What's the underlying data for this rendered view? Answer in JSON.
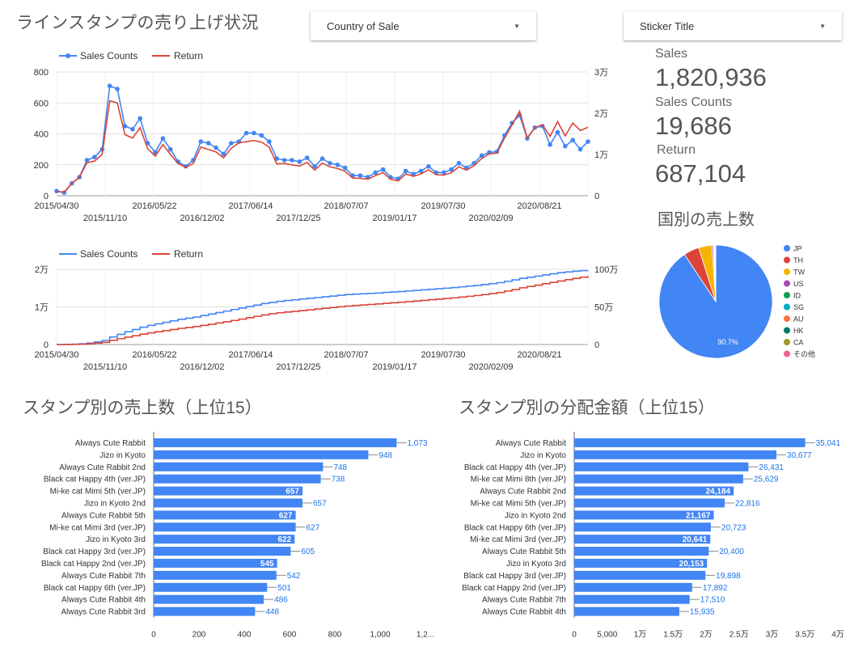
{
  "header": {
    "title": "ラインスタンプの売り上げ状況"
  },
  "filters": {
    "country": {
      "label": "Country of Sale"
    },
    "sticker": {
      "label": "Sticker Title"
    }
  },
  "kpis": {
    "sales": {
      "label": "Sales",
      "value": "1,820,936"
    },
    "sales_counts": {
      "label": "Sales Counts",
      "value": "19,686"
    },
    "return": {
      "label": "Return",
      "value": "687,104"
    }
  },
  "pie_title": "国別の売上数",
  "bar1_title": "スタンプ別の売上数（上位15）",
  "bar2_title": "スタンプ別の分配金額（上位15）",
  "colors": {
    "blue": "#4285f4",
    "red": "#db4437",
    "yellow": "#f4b400",
    "axis": "#757575",
    "grid": "#e0e0e0"
  },
  "chart_data": [
    {
      "type": "line",
      "id": "timeseries",
      "legend": [
        "Sales Counts",
        "Return"
      ],
      "x_ticks_top": [
        "2015/04/30",
        "2016/05/22",
        "2017/06/14",
        "2018/07/07",
        "2019/07/30",
        "2020/08/21"
      ],
      "x_ticks_bottom": [
        "2015/11/10",
        "2016/12/02",
        "2017/12/25",
        "2019/01/17",
        "2020/02/09"
      ],
      "y_left_ticks": [
        "800",
        "600",
        "400",
        "200",
        "0"
      ],
      "y_right_ticks": [
        "3万",
        "2万",
        "1万",
        "0"
      ],
      "y_left_range": [
        0,
        800
      ],
      "y_right_range": [
        0,
        30000
      ],
      "series": [
        {
          "name": "Sales Counts",
          "axis": "left",
          "values": [
            30,
            20,
            80,
            120,
            230,
            250,
            300,
            710,
            690,
            450,
            430,
            500,
            340,
            280,
            370,
            300,
            220,
            190,
            230,
            350,
            340,
            310,
            270,
            340,
            350,
            405,
            405,
            390,
            350,
            240,
            230,
            230,
            220,
            245,
            190,
            240,
            210,
            200,
            180,
            130,
            130,
            120,
            150,
            170,
            120,
            110,
            160,
            140,
            160,
            190,
            150,
            150,
            170,
            210,
            180,
            210,
            260,
            280,
            285,
            390,
            470,
            520,
            370,
            440,
            450,
            330,
            410,
            320,
            360,
            300,
            350
          ]
        },
        {
          "name": "Return",
          "axis": "right",
          "values": [
            1000,
            900,
            3000,
            4500,
            8000,
            8400,
            10000,
            23000,
            22500,
            14800,
            14000,
            16500,
            11400,
            9600,
            12400,
            10000,
            7800,
            6900,
            7800,
            11800,
            11200,
            10600,
            9200,
            11500,
            12800,
            13100,
            13400,
            13000,
            11800,
            7700,
            7800,
            7500,
            7200,
            8100,
            6200,
            7900,
            7000,
            6600,
            5900,
            4300,
            4200,
            4000,
            4900,
            5600,
            4000,
            3600,
            5300,
            4700,
            5300,
            6300,
            5100,
            5000,
            5600,
            7000,
            6200,
            7300,
            9000,
            10200,
            10300,
            14000,
            17200,
            20500,
            14000,
            16500,
            17200,
            14400,
            18000,
            14500,
            17600,
            15800,
            16600
          ]
        }
      ]
    },
    {
      "type": "line",
      "id": "cumulative",
      "legend": [
        "Sales Counts",
        "Return"
      ],
      "x_ticks_top": [
        "2015/04/30",
        "2016/05/22",
        "2017/06/14",
        "2018/07/07",
        "2019/07/30",
        "2020/08/21"
      ],
      "x_ticks_bottom": [
        "2015/11/10",
        "2016/12/02",
        "2017/12/25",
        "2019/01/17",
        "2020/02/09"
      ],
      "y_left_ticks": [
        "2万",
        "1万",
        "0"
      ],
      "y_right_ticks": [
        "100万",
        "50万",
        "0"
      ],
      "y_left_range": [
        0,
        20000
      ],
      "y_right_range": [
        0,
        1000000
      ],
      "series": [
        {
          "name": "Sales Counts",
          "axis": "left",
          "values": [
            0,
            50,
            100,
            200,
            400,
            700,
            1100,
            2000,
            2700,
            3400,
            4000,
            4600,
            5100,
            5500,
            5900,
            6300,
            6700,
            7000,
            7300,
            7700,
            8100,
            8500,
            8900,
            9300,
            9700,
            10100,
            10500,
            10900,
            11200,
            11500,
            11700,
            11900,
            12100,
            12300,
            12500,
            12700,
            12900,
            13100,
            13300,
            13400,
            13500,
            13600,
            13700,
            13850,
            14000,
            14100,
            14250,
            14400,
            14550,
            14700,
            14850,
            15000,
            15150,
            15350,
            15550,
            15750,
            15950,
            16200,
            16450,
            16800,
            17200,
            17600,
            17900,
            18200,
            18500,
            18800,
            19100,
            19300,
            19500,
            19650,
            19700
          ]
        },
        {
          "name": "Return",
          "axis": "right",
          "values": [
            0,
            1000,
            2500,
            5500,
            11000,
            19000,
            29000,
            56000,
            78000,
            99000,
            118000,
            138000,
            155000,
            170000,
            185000,
            200000,
            215000,
            227000,
            240000,
            255000,
            270000,
            287000,
            303000,
            320000,
            338000,
            357000,
            375000,
            393000,
            410000,
            422000,
            432000,
            442000,
            452000,
            462000,
            472000,
            482000,
            492000,
            502000,
            512000,
            519000,
            526000,
            533000,
            540000,
            548000,
            556000,
            563000,
            571000,
            579000,
            587000,
            596000,
            604000,
            612000,
            621000,
            631000,
            641000,
            652000,
            664000,
            678000,
            692000,
            710000,
            731000,
            754000,
            772000,
            790000,
            808000,
            826000,
            845000,
            862000,
            880000,
            896000,
            912000
          ]
        }
      ]
    },
    {
      "type": "pie",
      "id": "country-pie",
      "title": "国別の売上数",
      "labels": [
        "JP",
        "TH",
        "TW",
        "US",
        "ID",
        "SG",
        "AU",
        "HK",
        "CA",
        "その他"
      ],
      "values": [
        90.7,
        4.4,
        3.8,
        0.4,
        0.2,
        0.2,
        0.1,
        0.1,
        0.05,
        0.05
      ],
      "slice_label": "90.7%",
      "colors": [
        "#4285f4",
        "#db4437",
        "#f4b400",
        "#ab47bc",
        "#0f9d58",
        "#00acc1",
        "#ff7043",
        "#00796b",
        "#9e9d24",
        "#f06292"
      ]
    },
    {
      "type": "bar",
      "id": "top15-counts",
      "title": "スタンプ別の売上数（上位15）",
      "orientation": "horizontal",
      "categories": [
        "Always Cute Rabbit",
        "Jizo in Kyoto",
        "Always Cute Rabbit 2nd",
        "Black cat Happy 4th (ver.JP)",
        "Mi-ke cat Mimi 5th (ver.JP)",
        "Jizo in Kyoto 2nd",
        "Always Cute Rabbit 5th",
        "Mi-ke cat Mimi 3rd (ver.JP)",
        "Jizo in Kyoto 3rd",
        "Black cat Happy 3rd (ver.JP)",
        "Black cat Happy 2nd (ver.JP)",
        "Always Cute Rabbit 7th",
        "Black cat Happy 6th (ver.JP)",
        "Always Cute Rabbit 4th",
        "Always Cute Rabbit 3rd"
      ],
      "values": [
        1073,
        948,
        748,
        738,
        657,
        657,
        627,
        627,
        622,
        605,
        545,
        542,
        501,
        486,
        448
      ],
      "value_labels": [
        "1,073",
        "948",
        "748",
        "738",
        "657",
        "657",
        "627",
        "627",
        "622",
        "605",
        "545",
        "542",
        "501",
        "486",
        "448"
      ],
      "inside_label": [
        false,
        false,
        false,
        false,
        true,
        false,
        true,
        false,
        true,
        false,
        true,
        false,
        false,
        false,
        false
      ],
      "x_ticks": [
        "0",
        "200",
        "400",
        "600",
        "800",
        "1,000",
        "1,2..."
      ],
      "xlim": [
        0,
        1250
      ]
    },
    {
      "type": "bar",
      "id": "top15-payout",
      "title": "スタンプ別の分配金額（上位15）",
      "orientation": "horizontal",
      "categories": [
        "Always Cute Rabbit",
        "Jizo in Kyoto",
        "Black cat Happy 4th (ver.JP)",
        "Mi-ke cat Mimi 8th (ver.JP)",
        "Always Cute Rabbit 2nd",
        "Mi-ke cat Mimi 5th (ver.JP)",
        "Jizo in Kyoto 2nd",
        "Black cat Happy 6th (ver.JP)",
        "Mi-ke cat Mimi 3rd (ver.JP)",
        "Always Cute Rabbit 5th",
        "Jizo in Kyoto 3rd",
        "Black cat Happy 3rd (ver.JP)",
        "Black cat Happy 2nd (ver.JP)",
        "Always Cute Rabbit 7th",
        "Always Cute Rabbit 4th"
      ],
      "values": [
        35041,
        30677,
        26431,
        25629,
        24184,
        22816,
        21167,
        20723,
        20641,
        20400,
        20153,
        19898,
        17892,
        17510,
        15935
      ],
      "value_labels": [
        "35,041",
        "30,677",
        "26,431",
        "25,629",
        "24,184",
        "22,816",
        "21,167",
        "20,723",
        "20,641",
        "20,400",
        "20,153",
        "19,898",
        "17,892",
        "17,510",
        "15,935"
      ],
      "inside_label": [
        false,
        false,
        false,
        false,
        true,
        false,
        true,
        false,
        true,
        false,
        true,
        false,
        false,
        false,
        false
      ],
      "x_ticks": [
        "0",
        "5,000",
        "1万",
        "1.5万",
        "2万",
        "2.5万",
        "3万",
        "3.5万",
        "4万"
      ],
      "xlim": [
        0,
        40000
      ]
    }
  ]
}
